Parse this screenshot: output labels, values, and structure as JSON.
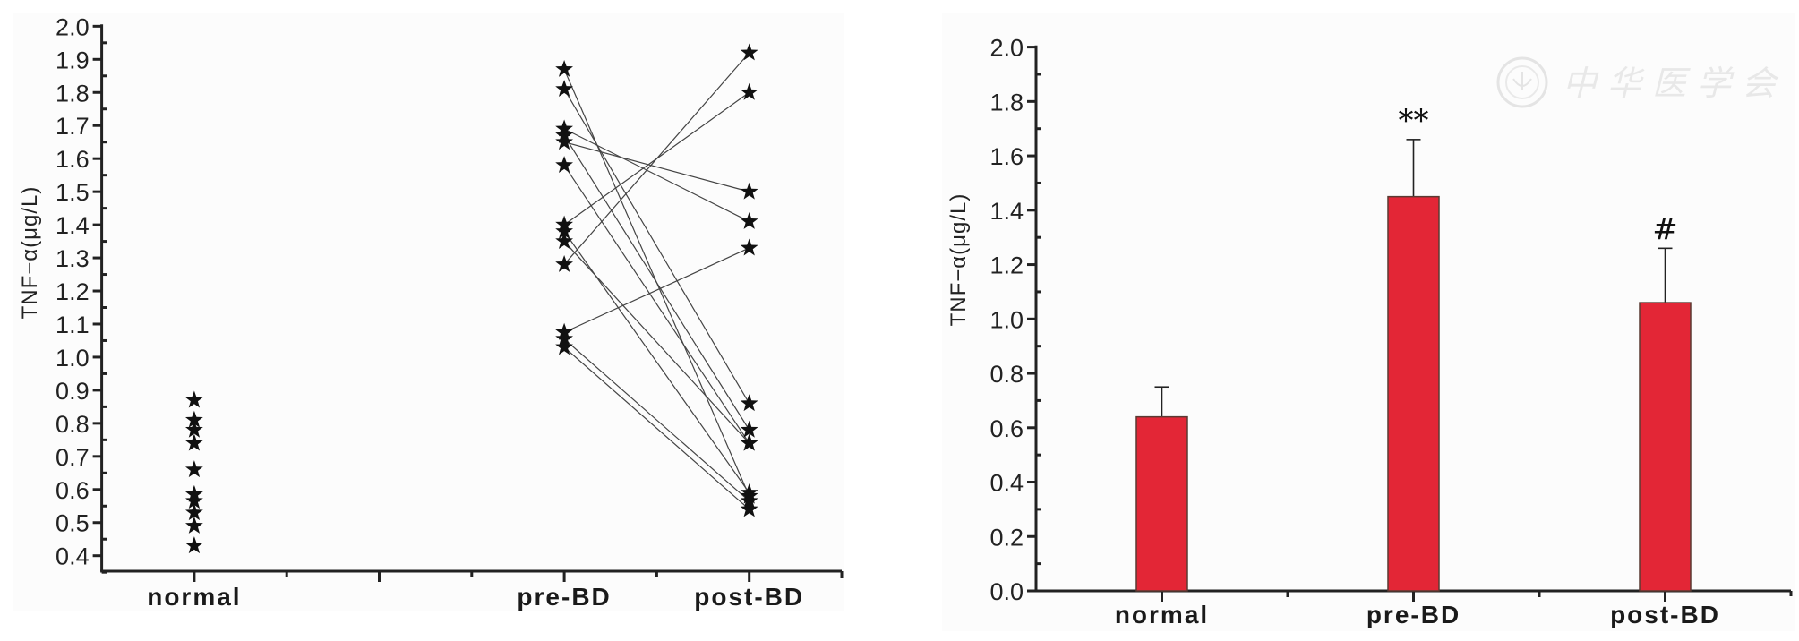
{
  "colors": {
    "bar_fill": "#e32636",
    "bar_edge": "#5a3a32",
    "axis": "#222222",
    "panel_bg": "#fcfcfc",
    "connector": "#444444",
    "marker": "#111111",
    "watermark": "#e6e6e6"
  },
  "watermark": {
    "text": "中华医学会",
    "logo": "seal-logo-icon"
  },
  "chart_data": [
    {
      "type": "scatter",
      "title": "",
      "xlabel": "",
      "ylabel": "TNF−α(μg/L)",
      "ylim": [
        0.35,
        2.0
      ],
      "yticks": [
        "0.4",
        "0.5",
        "0.6",
        "0.7",
        "0.8",
        "0.9",
        "1.0",
        "1.1",
        "1.2",
        "1.3",
        "1.4",
        "1.5",
        "1.6",
        "1.7",
        "1.8",
        "1.9",
        "2.0"
      ],
      "ytick_values": [
        0.4,
        0.5,
        0.6,
        0.7,
        0.8,
        0.9,
        1.0,
        1.1,
        1.2,
        1.3,
        1.4,
        1.5,
        1.6,
        1.7,
        1.8,
        1.9,
        2.0
      ],
      "categories": [
        "normal",
        "pre-BD",
        "post-BD"
      ],
      "category_positions": [
        1,
        5,
        7
      ],
      "xlim": [
        0,
        8
      ],
      "xtick_major": [
        1,
        3,
        5,
        7
      ],
      "xtick_minor": [
        2,
        4,
        6
      ],
      "marker": "star-icon",
      "grid": false,
      "series": [
        {
          "name": "normal",
          "values": [
            0.87,
            0.81,
            0.78,
            0.74,
            0.66,
            0.585,
            0.565,
            0.53,
            0.49,
            0.43
          ]
        },
        {
          "name": "pre-BD",
          "values": [
            1.87,
            1.81,
            1.69,
            1.67,
            1.65,
            1.58,
            1.4,
            1.38,
            1.35,
            1.28,
            1.075,
            1.055,
            1.03
          ]
        },
        {
          "name": "post-BD",
          "values": [
            0.58,
            0.86,
            1.41,
            0.78,
            1.5,
            0.74,
            1.8,
            0.59,
            0.74,
            1.92,
            1.33,
            0.565,
            0.54
          ]
        }
      ],
      "paired_lines": "pre-BD[i] connected to post-BD[i]"
    },
    {
      "type": "bar",
      "title": "",
      "xlabel": "",
      "ylabel": "TNF−α(μg/L)",
      "ylim": [
        0,
        2.0
      ],
      "yticks": [
        "0.0",
        "0.2",
        "0.4",
        "0.6",
        "0.8",
        "1.0",
        "1.2",
        "1.4",
        "1.6",
        "1.8",
        "2.0"
      ],
      "ytick_values": [
        0,
        0.2,
        0.4,
        0.6,
        0.8,
        1.0,
        1.2,
        1.4,
        1.6,
        1.8,
        2.0
      ],
      "categories": [
        "normal",
        "pre-BD",
        "post-BD"
      ],
      "values": [
        0.64,
        1.45,
        1.06
      ],
      "errors": [
        0.11,
        0.21,
        0.2
      ],
      "annotations": [
        "",
        "**",
        "#"
      ],
      "grid": false
    }
  ]
}
